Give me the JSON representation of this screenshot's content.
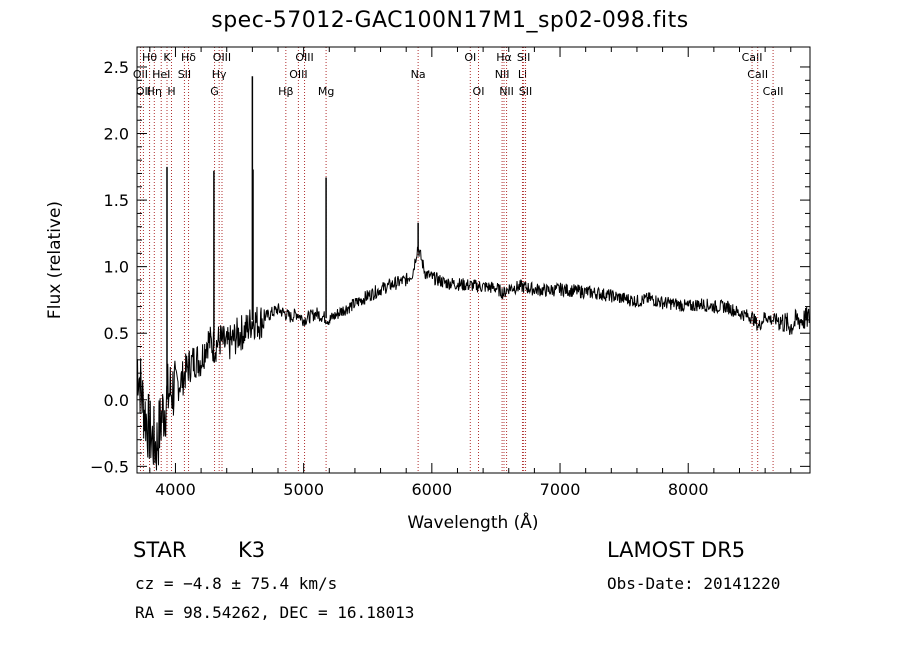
{
  "title": "spec-57012-GAC100N17M1_sp02-098.fits",
  "info": {
    "object_class": "STAR",
    "subclass": "K3",
    "survey": "LAMOST DR5",
    "cz": "cz = −4.8 ± 75.4 km/s",
    "obs_date": "Obs-Date: 20141220",
    "radec": "RA =  98.54262, DEC =  16.18013"
  },
  "colors": {
    "spectrum": "#000000",
    "line_markers": "#b03030",
    "axes": "#000000"
  },
  "chart_data": {
    "type": "line",
    "title": "spec-57012-GAC100N17M1_sp02-098.fits",
    "xlabel": "Wavelength (Å)",
    "ylabel": "Flux (relative)",
    "xlim": [
      3700,
      8950
    ],
    "ylim": [
      -0.55,
      2.65
    ],
    "xticks": [
      4000,
      5000,
      6000,
      7000,
      8000
    ],
    "xticklabels": [
      "4000",
      "5000",
      "6000",
      "7000",
      "8000"
    ],
    "yticks": [
      -0.5,
      0.0,
      0.5,
      1.0,
      1.5,
      2.0,
      2.5
    ],
    "yticklabels": [
      "−0.5",
      "0.0",
      "0.5",
      "1.0",
      "1.5",
      "2.0",
      "2.5"
    ],
    "grid": false,
    "series": [
      {
        "x": [
          3700,
          3750,
          3800,
          3850,
          3900,
          3950,
          4000,
          4050,
          4100,
          4150,
          4200,
          4250,
          4300,
          4350,
          4400,
          4450,
          4500,
          4550,
          4600,
          4650,
          4700,
          4750,
          4800,
          4850,
          4900,
          4950,
          5000,
          5100,
          5200,
          5300,
          5400,
          5500,
          5600,
          5700,
          5800,
          5850,
          5890,
          5950,
          6000,
          6100,
          6200,
          6300,
          6400,
          6500,
          6560,
          6600,
          6700,
          6800,
          6900,
          7000,
          7100,
          7200,
          7300,
          7400,
          7500,
          7600,
          7700,
          7800,
          7900,
          8000,
          8100,
          8200,
          8300,
          8400,
          8500,
          8550,
          8600,
          8650,
          8700,
          8750,
          8800,
          8850,
          8900,
          8950
        ],
        "y": [
          0.3,
          -0.05,
          -0.25,
          -0.35,
          -0.1,
          0.05,
          0.1,
          0.15,
          0.25,
          0.3,
          0.3,
          0.45,
          0.4,
          0.45,
          0.4,
          0.45,
          0.5,
          0.52,
          0.6,
          0.58,
          0.62,
          0.65,
          0.68,
          0.65,
          0.62,
          0.65,
          0.6,
          0.65,
          0.6,
          0.67,
          0.72,
          0.78,
          0.83,
          0.87,
          0.9,
          0.95,
          1.15,
          0.95,
          0.92,
          0.88,
          0.87,
          0.86,
          0.85,
          0.84,
          0.8,
          0.84,
          0.85,
          0.83,
          0.82,
          0.83,
          0.82,
          0.81,
          0.8,
          0.78,
          0.76,
          0.74,
          0.76,
          0.73,
          0.72,
          0.7,
          0.72,
          0.7,
          0.7,
          0.65,
          0.62,
          0.55,
          0.63,
          0.6,
          0.6,
          0.58,
          0.55,
          0.6,
          0.6,
          0.62
        ]
      }
    ],
    "emission_spikes": [
      {
        "x": 3934,
        "y": 1.75
      },
      {
        "x": 4300,
        "y": 1.72
      },
      {
        "x": 4600,
        "y": 2.43
      },
      {
        "x": 4605,
        "y": 1.73
      },
      {
        "x": 5175,
        "y": 1.67
      },
      {
        "x": 5893,
        "y": 1.33
      }
    ],
    "line_markers": [
      {
        "x": 3727,
        "label": "OII",
        "row": 1
      },
      {
        "x": 3750,
        "label": "OII",
        "row": 2
      },
      {
        "x": 3798,
        "label": "Hθ",
        "row": 0
      },
      {
        "x": 3835,
        "label": "Hη",
        "row": 2
      },
      {
        "x": 3889,
        "label": "HeI",
        "row": 1
      },
      {
        "x": 3934,
        "label": "K",
        "row": 0
      },
      {
        "x": 3969,
        "label": "H",
        "row": 2
      },
      {
        "x": 4070,
        "label": "SII",
        "row": 1
      },
      {
        "x": 4102,
        "label": "Hδ",
        "row": 0
      },
      {
        "x": 4305,
        "label": "G",
        "row": 2
      },
      {
        "x": 4341,
        "label": "Hγ",
        "row": 1
      },
      {
        "x": 4363,
        "label": "OIII",
        "row": 0
      },
      {
        "x": 4861,
        "label": "Hβ",
        "row": 2
      },
      {
        "x": 4959,
        "label": "OIII",
        "row": 1
      },
      {
        "x": 5007,
        "label": "OIII",
        "row": 0
      },
      {
        "x": 5175,
        "label": "Mg",
        "row": 2
      },
      {
        "x": 5893,
        "label": "Na",
        "row": 1
      },
      {
        "x": 6300,
        "label": "OI",
        "row": 0
      },
      {
        "x": 6364,
        "label": "OI",
        "row": 2
      },
      {
        "x": 6548,
        "label": "NII",
        "row": 1
      },
      {
        "x": 6563,
        "label": "Hα",
        "row": 0
      },
      {
        "x": 6583,
        "label": "NII",
        "row": 2
      },
      {
        "x": 6707,
        "label": "Li",
        "row": 1
      },
      {
        "x": 6716,
        "label": "SII",
        "row": 0
      },
      {
        "x": 6731,
        "label": "SII",
        "row": 2
      },
      {
        "x": 8498,
        "label": "CaII",
        "row": 0
      },
      {
        "x": 8542,
        "label": "CaII",
        "row": 1
      },
      {
        "x": 8662,
        "label": "CaII",
        "row": 2
      }
    ]
  }
}
